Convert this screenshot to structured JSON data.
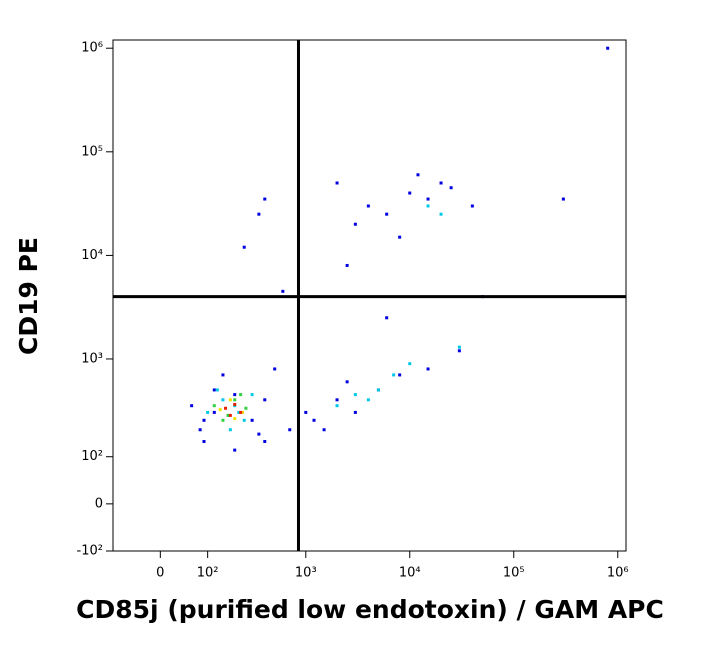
{
  "chart_data": {
    "type": "scatter",
    "x_label": "CD85j (purified low endotoxin) / GAM APC",
    "y_label": "CD19 PE",
    "xscale": "logicle",
    "yscale": "logicle",
    "xlim": [
      -100,
      1200000
    ],
    "ylim": [
      -100,
      1200000
    ],
    "xticks": [
      0,
      {
        "value": 100,
        "label": "10²"
      },
      {
        "value": 1000,
        "label": "10³"
      },
      {
        "value": 10000,
        "label": "10⁴"
      },
      {
        "value": 100000,
        "label": "10⁵"
      },
      {
        "value": 1000000,
        "label": "10⁶"
      }
    ],
    "yticks": [
      {
        "value": -100,
        "label": "-10²"
      },
      0,
      {
        "value": 100,
        "label": "10²"
      },
      {
        "value": 1000,
        "label": "10³"
      },
      {
        "value": 10000,
        "label": "10⁴"
      },
      {
        "value": 100000,
        "label": "10⁵"
      },
      {
        "value": 1000000,
        "label": "10⁶"
      }
    ],
    "gates": {
      "x": 850,
      "y": 4000
    },
    "series": [
      {
        "color": "#0000e0",
        "x": [
          80,
          120,
          300,
          500,
          60,
          90,
          400,
          200,
          150,
          1200,
          2000,
          3000,
          5000,
          8000,
          15000,
          30000,
          1500,
          2500,
          700,
          400,
          4000,
          6000,
          10000,
          20000,
          3000,
          8000,
          15000,
          25000,
          40000,
          12000,
          250,
          350,
          600,
          2500,
          6000,
          400,
          50000,
          300000,
          800000,
          2000,
          120,
          90,
          200,
          350,
          1000
        ],
        "y": [
          200,
          500,
          250,
          800,
          350,
          150,
          150,
          120,
          700,
          250,
          400,
          300,
          500,
          700,
          800,
          1200,
          200,
          600,
          200,
          400,
          30000,
          25000,
          40000,
          50000,
          20000,
          15000,
          35000,
          45000,
          30000,
          60000,
          12000,
          25000,
          4500,
          8000,
          2500,
          35000,
          4000,
          35000,
          1000000,
          50000,
          300,
          250,
          450,
          180,
          300
        ]
      },
      {
        "color": "#00c8e8",
        "x": [
          100,
          150,
          200,
          250,
          300,
          180,
          130,
          220,
          3000,
          5000,
          7000,
          4000,
          20000,
          2000,
          10000,
          15000,
          30000
        ],
        "y": [
          300,
          400,
          350,
          250,
          450,
          200,
          500,
          300,
          450,
          500,
          700,
          400,
          25000,
          350,
          900,
          30000,
          1300
        ]
      },
      {
        "color": "#30d040",
        "x": [
          120,
          170,
          200,
          260,
          150,
          230
        ],
        "y": [
          350,
          280,
          400,
          330,
          250,
          450
        ]
      },
      {
        "color": "#f0e000",
        "x": [
          140,
          180,
          240,
          200
        ],
        "y": [
          320,
          400,
          300,
          260
        ]
      },
      {
        "color": "#e82000",
        "x": [
          160,
          200,
          230,
          180
        ],
        "y": [
          330,
          360,
          300,
          280
        ]
      }
    ]
  }
}
